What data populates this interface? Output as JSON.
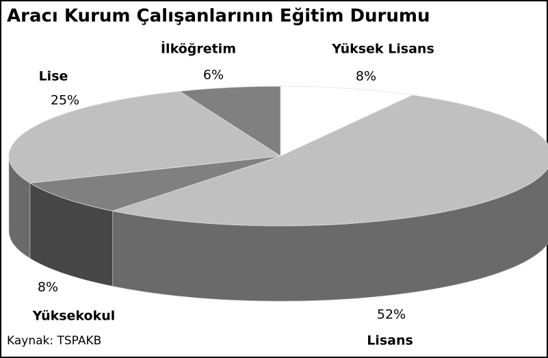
{
  "chart_data": {
    "type": "pie3d",
    "title": "Aracı Kurum Çalışanlarının Eğitim Durumu",
    "categories": [
      "Yüksek Lisans",
      "Lisans",
      "Yüksekokul",
      "Lise",
      "İlköğretim"
    ],
    "values": [
      8,
      52,
      8,
      25,
      6
    ],
    "value_labels": [
      "8%",
      "52%",
      "8%",
      "25%",
      "6%"
    ],
    "colors": [
      "#ffffff",
      "#c0c0c0",
      "#808080",
      "#c0c0c0",
      "#808080"
    ],
    "source": "Kaynak: TSPAKB"
  }
}
